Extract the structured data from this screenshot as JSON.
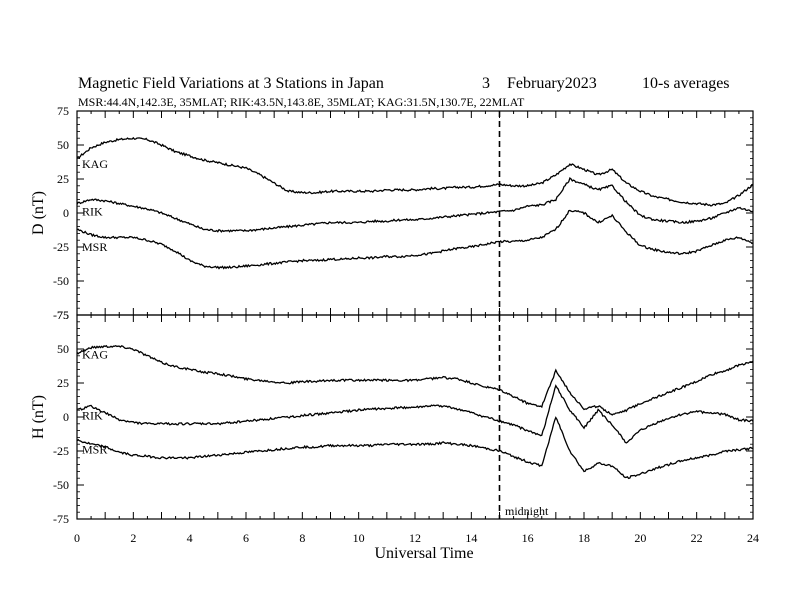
{
  "header": {
    "title": "Magnetic Field Variations at 3 Stations in Japan",
    "day": "3",
    "month_year": "February2023",
    "averaging": "10-s averages",
    "subtitle": "MSR:44.4N,142.3E, 35MLAT;  RIK:43.5N,143.8E, 35MLAT;  KAG:31.5N,130.7E, 22MLAT"
  },
  "xaxis": {
    "label": "Universal Time",
    "ticks": [
      "0",
      "2",
      "4",
      "6",
      "8",
      "10",
      "12",
      "14",
      "16",
      "18",
      "20",
      "22",
      "24"
    ]
  },
  "annotation": {
    "midnight_label": "midnight",
    "midnight_ut": 15
  },
  "colors": {
    "line": "#000000",
    "background": "#ffffff"
  },
  "chart_data": [
    {
      "type": "line",
      "ylabel": "D (nT)",
      "xlim": [
        0,
        24
      ],
      "ylim": [
        -75,
        75
      ],
      "yticks": [
        "75",
        "50",
        "25",
        "0",
        "-25",
        "-50",
        "-75"
      ],
      "x": [
        0,
        0.5,
        1,
        1.5,
        2,
        2.5,
        3,
        3.5,
        4,
        4.5,
        5,
        5.5,
        6,
        6.5,
        7,
        7.5,
        8,
        8.5,
        9,
        9.5,
        10,
        10.5,
        11,
        11.5,
        12,
        12.5,
        13,
        13.5,
        14,
        14.5,
        15,
        15.5,
        16,
        16.5,
        17,
        17.5,
        18,
        18.5,
        19,
        19.5,
        20,
        20.5,
        21,
        21.5,
        22,
        22.5,
        23,
        23.5,
        24
      ],
      "series": [
        {
          "name": "KAG",
          "values": [
            40,
            48,
            52,
            54,
            55,
            54,
            50,
            45,
            42,
            39,
            37,
            35,
            33,
            28,
            22,
            16,
            15,
            15,
            16,
            16,
            16,
            16,
            17,
            17,
            17,
            18,
            18,
            19,
            19,
            20,
            21,
            20,
            20,
            22,
            28,
            36,
            32,
            28,
            32,
            22,
            16,
            12,
            10,
            8,
            7,
            6,
            7,
            13,
            21
          ]
        },
        {
          "name": "RIK",
          "values": [
            7,
            10,
            9,
            7,
            5,
            3,
            0,
            -4,
            -8,
            -12,
            -13,
            -13,
            -13,
            -12,
            -11,
            -10,
            -9,
            -8,
            -7,
            -7,
            -7,
            -6,
            -6,
            -5,
            -5,
            -4,
            -3,
            -2,
            -1,
            0,
            1,
            2,
            5,
            6,
            10,
            25,
            21,
            17,
            20,
            8,
            -2,
            -5,
            -6,
            -7,
            -6,
            -4,
            0,
            4,
            1
          ]
        },
        {
          "name": "MSR",
          "values": [
            -12,
            -16,
            -18,
            -18,
            -18,
            -20,
            -23,
            -28,
            -35,
            -39,
            -40,
            -40,
            -39,
            -38,
            -37,
            -36,
            -35,
            -35,
            -34,
            -34,
            -33,
            -33,
            -32,
            -32,
            -31,
            -30,
            -28,
            -26,
            -25,
            -23,
            -21,
            -21,
            -20,
            -18,
            -12,
            2,
            0,
            -7,
            -2,
            -14,
            -24,
            -27,
            -29,
            -30,
            -28,
            -24,
            -20,
            -18,
            -22
          ]
        }
      ],
      "station_labels": [
        {
          "name": "KAG",
          "y": 36
        },
        {
          "name": "RIK",
          "y": 1
        },
        {
          "name": "MSR",
          "y": -25
        }
      ]
    },
    {
      "type": "line",
      "ylabel": "H (nT)",
      "xlim": [
        0,
        24
      ],
      "ylim": [
        -75,
        75
      ],
      "yticks": [
        "75",
        "50",
        "25",
        "0",
        "-25",
        "-50",
        "-75"
      ],
      "x": [
        0,
        0.5,
        1,
        1.5,
        2,
        2.5,
        3,
        3.5,
        4,
        4.5,
        5,
        5.5,
        6,
        6.5,
        7,
        7.5,
        8,
        8.5,
        9,
        9.5,
        10,
        10.5,
        11,
        11.5,
        12,
        12.5,
        13,
        13.5,
        14,
        14.5,
        15,
        15.5,
        16,
        16.5,
        17,
        17.5,
        18,
        18.5,
        19,
        19.5,
        20,
        20.5,
        21,
        21.5,
        22,
        22.5,
        23,
        23.5,
        24
      ],
      "series": [
        {
          "name": "KAG",
          "values": [
            47,
            51,
            52,
            52,
            50,
            45,
            40,
            37,
            35,
            33,
            32,
            30,
            28,
            27,
            26,
            25,
            26,
            26,
            27,
            27,
            27,
            27,
            27,
            27,
            27,
            28,
            29,
            28,
            25,
            22,
            20,
            15,
            10,
            8,
            34,
            18,
            6,
            8,
            2,
            5,
            10,
            14,
            18,
            22,
            26,
            31,
            34,
            38,
            41
          ]
        },
        {
          "name": "RIK",
          "values": [
            5,
            8,
            3,
            -2,
            -4,
            -5,
            -5,
            -5,
            -5,
            -5,
            -5,
            -4,
            -3,
            -2,
            -1,
            0,
            1,
            2,
            3,
            4,
            5,
            6,
            6,
            7,
            7,
            8,
            8,
            6,
            3,
            0,
            -3,
            -6,
            -10,
            -14,
            23,
            5,
            -8,
            5,
            -6,
            -19,
            -10,
            -5,
            -1,
            2,
            4,
            3,
            2,
            -2,
            -3
          ]
        },
        {
          "name": "MSR",
          "values": [
            -17,
            -20,
            -22,
            -26,
            -28,
            -29,
            -30,
            -30,
            -30,
            -29,
            -28,
            -27,
            -26,
            -25,
            -24,
            -23,
            -22,
            -22,
            -21,
            -21,
            -21,
            -21,
            -20,
            -20,
            -20,
            -20,
            -19,
            -20,
            -21,
            -23,
            -25,
            -29,
            -33,
            -36,
            0,
            -25,
            -40,
            -34,
            -36,
            -45,
            -42,
            -38,
            -35,
            -32,
            -30,
            -28,
            -25,
            -24,
            -23
          ]
        }
      ],
      "station_labels": [
        {
          "name": "KAG",
          "y": 46
        },
        {
          "name": "RIK",
          "y": 1
        },
        {
          "name": "MSR",
          "y": -24
        }
      ]
    }
  ]
}
